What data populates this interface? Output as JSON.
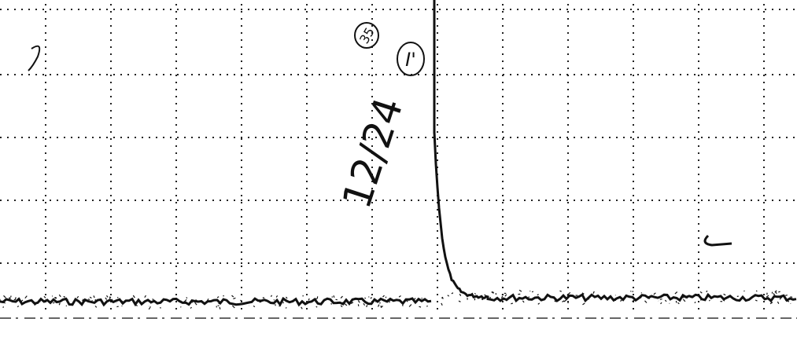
{
  "annotations": {
    "date": "12/24",
    "page_number": "35",
    "label": "I'"
  }
}
